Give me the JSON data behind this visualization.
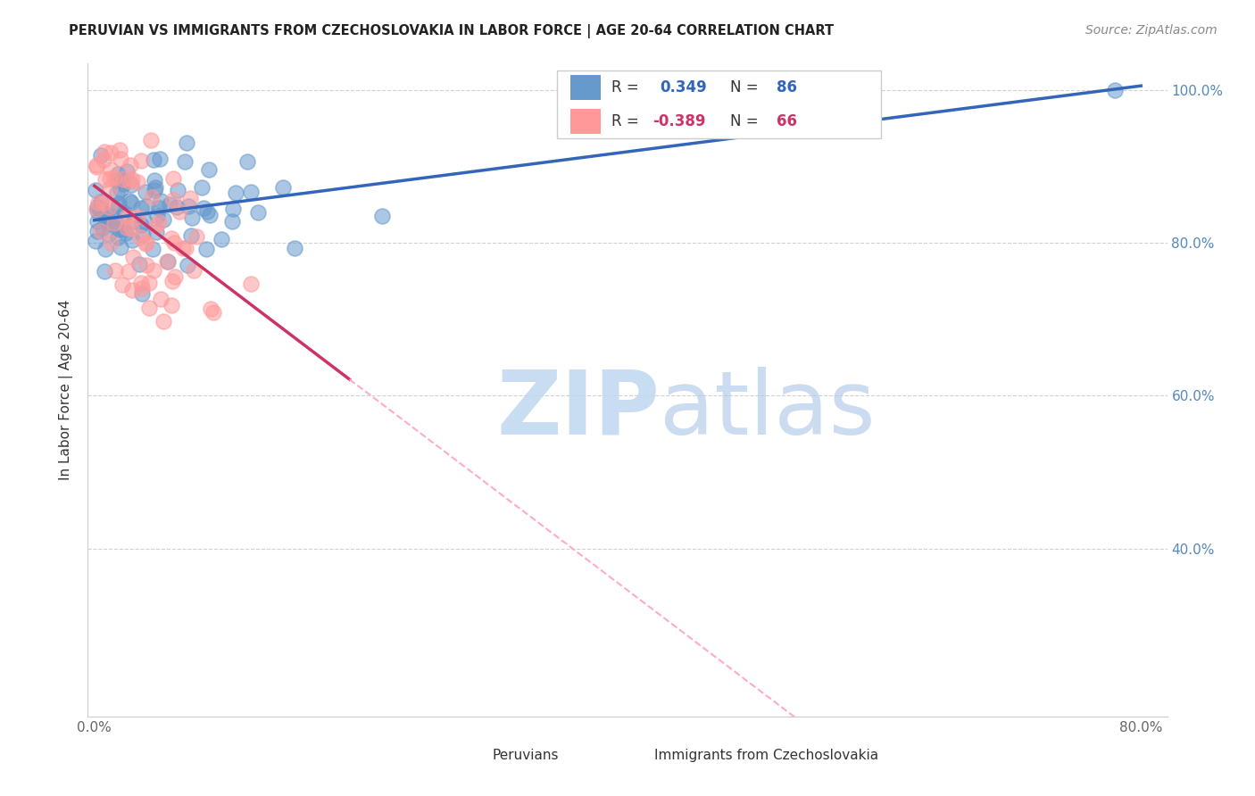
{
  "title": "PERUVIAN VS IMMIGRANTS FROM CZECHOSLOVAKIA IN LABOR FORCE | AGE 20-64 CORRELATION CHART",
  "source_text": "Source: ZipAtlas.com",
  "ylabel": "In Labor Force | Age 20-64",
  "xlim": [
    -0.005,
    0.82
  ],
  "ylim": [
    0.18,
    1.035
  ],
  "xtick_positions": [
    0.0,
    0.8
  ],
  "xticklabels": [
    "0.0%",
    "80.0%"
  ],
  "ytick_positions": [
    0.4,
    0.6,
    0.8,
    1.0
  ],
  "yticklabels": [
    "40.0%",
    "60.0%",
    "80.0%",
    "100.0%"
  ],
  "blue_R": 0.349,
  "blue_N": 86,
  "pink_R": -0.389,
  "pink_N": 66,
  "blue_color": "#6699CC",
  "pink_color": "#FF9999",
  "blue_line_color": "#3366BB",
  "pink_line_color": "#CC3366",
  "pink_dash_color": "#FFAACC",
  "watermark_color": "#D8E8F8",
  "legend_label_blue": "Peruvians",
  "legend_label_pink": "Immigrants from Czechoslovakia",
  "blue_seed": 10,
  "pink_seed": 20,
  "grid_color": "#CCCCCC",
  "tick_color": "#5588BB",
  "title_color": "#222222",
  "source_color": "#888888",
  "ylabel_color": "#333333"
}
